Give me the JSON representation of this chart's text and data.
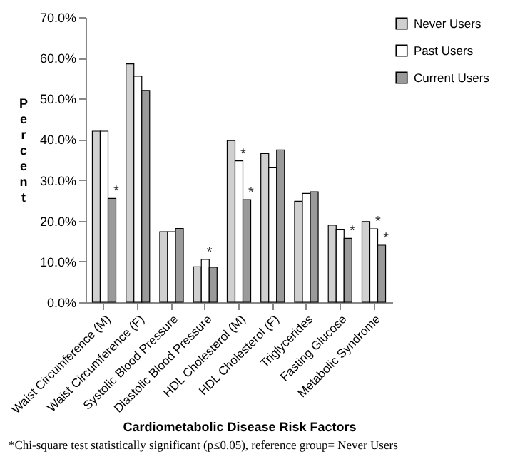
{
  "chart_data": {
    "type": "bar",
    "xlabel": "Cardiometabolic Disease Risk Factors",
    "ylabel": "Percent",
    "categories": [
      "Waist Circumference (M)",
      "Waist Circumference (F)",
      "Systolic Blood Pressure",
      "Diastolic Blood Pressure",
      "HDL Cholesterol (M)",
      "HDL Cholesterol (F)",
      "Triglycerides",
      "Fasting Glucose",
      "Metabolic Syndrome"
    ],
    "series": [
      {
        "name": "Never Users",
        "color": "#d0d0d0",
        "values": [
          42.0,
          58.5,
          17.3,
          8.7,
          39.7,
          36.5,
          24.8,
          18.9,
          19.8
        ]
      },
      {
        "name": "Past Users",
        "color": "#ffffff",
        "values": [
          42.0,
          55.5,
          17.3,
          10.5,
          34.7,
          33.0,
          26.7,
          17.8,
          18.0
        ]
      },
      {
        "name": "Current Users",
        "color": "#9a9a9a",
        "values": [
          25.5,
          52.0,
          18.1,
          8.6,
          25.2,
          37.4,
          27.1,
          15.7,
          14.0
        ]
      }
    ],
    "ylim": [
      0,
      70
    ],
    "yticks": [
      {
        "value": 0,
        "label": "0.0%"
      },
      {
        "value": 10,
        "label": "10.0%"
      },
      {
        "value": 20,
        "label": "20.0%"
      },
      {
        "value": 30,
        "label": "30.0%"
      },
      {
        "value": 40,
        "label": "40.0%"
      },
      {
        "value": 50,
        "label": "50.0%"
      },
      {
        "value": 60,
        "label": "60.0%"
      },
      {
        "value": 70,
        "label": "70.0%"
      }
    ],
    "grid": false,
    "legend": "right",
    "annotations": [
      {
        "text": "*",
        "x": "Waist Circumference (M)",
        "y": 25.5
      },
      {
        "text": "*",
        "x": "Diastolic Blood Pressure",
        "y": 10.5
      },
      {
        "text": "*",
        "x": "HDL Cholesterol (M)",
        "y": 34.7
      },
      {
        "text": "*",
        "x": "HDL Cholesterol (M)",
        "y": 25.2
      },
      {
        "text": "*",
        "x": "Fasting Glucose",
        "y": 15.7
      },
      {
        "text": "*",
        "x": "Metabolic Syndrome",
        "y": 18.0
      },
      {
        "text": "*",
        "x": "Metabolic Syndrome",
        "y": 14.0
      },
      "*Chi-square test statistically significant (p≤0.05), reference group= Never Users"
    ]
  }
}
